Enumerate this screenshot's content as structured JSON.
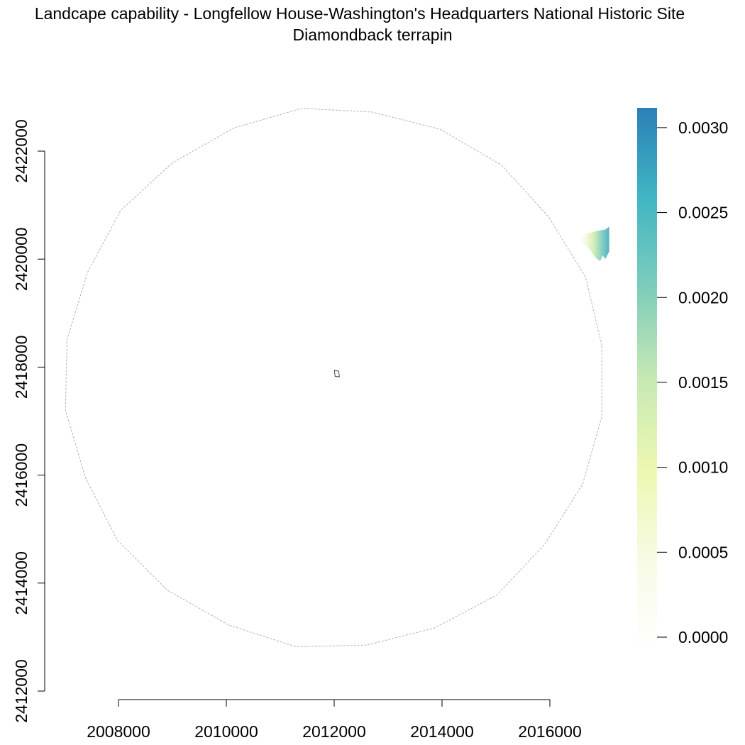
{
  "chart_data": {
    "type": "heatmap",
    "title": "Landcape capability - Longfellow House-Washington's Headquarters National Historic Site",
    "subtitle": "Diamondback terrapin",
    "xlabel": "",
    "ylabel": "",
    "xlim": [
      2008000,
      2016000
    ],
    "ylim": [
      2412000,
      2422000
    ],
    "x_ticks": [
      "2008000",
      "2010000",
      "2012000",
      "2014000",
      "2016000"
    ],
    "y_ticks": [
      "2412000",
      "2414000",
      "2416000",
      "2418000",
      "2420000",
      "2422000"
    ],
    "legend": {
      "placement": "right",
      "range": [
        0.0,
        0.0032
      ],
      "ticks": [
        "0.0000",
        "0.0005",
        "0.0010",
        "0.0015",
        "0.0020",
        "0.0025",
        "0.0030"
      ],
      "colors": [
        "#ffffff",
        "#f7fbe6",
        "#edf8b1",
        "#c7e9b4",
        "#7fcdbb",
        "#41b6c4",
        "#2c7fb8"
      ]
    },
    "buffer_circle": {
      "center": [
        2012000,
        2417800
      ],
      "radius": 5000,
      "color": "#b3b3b3",
      "style": "dashed"
    },
    "site_polygon": {
      "center": [
        2012050,
        2417880
      ],
      "color": "#404040"
    },
    "capability_raster": {
      "x_range": [
        2016500,
        2017100
      ],
      "y_range": [
        2419950,
        2420600
      ],
      "max_value": 0.0025
    }
  }
}
